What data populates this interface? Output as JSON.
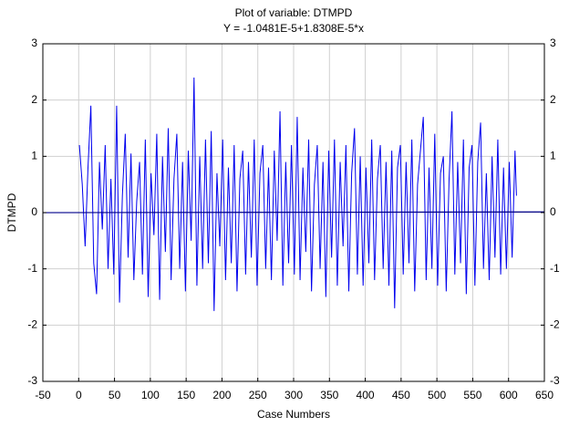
{
  "chart_data": {
    "type": "line",
    "title": "Plot of variable: DTMPD",
    "subtitle": "Y = -1.0481E-5+1.8308E-5*x",
    "x_label": "Case Numbers",
    "y_label": "DTMPD",
    "xlim": [
      -50,
      650
    ],
    "xticks": [
      -50,
      0,
      50,
      100,
      150,
      200,
      250,
      300,
      350,
      400,
      450,
      500,
      550,
      600,
      650
    ],
    "ylim": [
      -3,
      3
    ],
    "yticks": [
      -3,
      -2,
      -1,
      0,
      1,
      2,
      3
    ],
    "grid": true,
    "fit": {
      "intercept": -1.0481e-05,
      "slope": 1.8308e-05,
      "color": "#00008b"
    },
    "series": [
      {
        "name": "DTMPD",
        "color": "#0000ee",
        "x": [
          1,
          5,
          9,
          13,
          17,
          21,
          25,
          29,
          33,
          37,
          41,
          45,
          49,
          53,
          57,
          61,
          65,
          69,
          73,
          77,
          81,
          85,
          89,
          93,
          97,
          101,
          105,
          109,
          113,
          117,
          121,
          125,
          129,
          133,
          137,
          141,
          145,
          149,
          153,
          157,
          161,
          165,
          169,
          173,
          177,
          181,
          185,
          189,
          193,
          197,
          201,
          205,
          209,
          213,
          217,
          221,
          225,
          229,
          233,
          237,
          241,
          245,
          249,
          253,
          257,
          261,
          265,
          269,
          273,
          277,
          281,
          285,
          289,
          293,
          297,
          301,
          305,
          309,
          313,
          317,
          321,
          325,
          329,
          333,
          337,
          341,
          345,
          349,
          353,
          357,
          361,
          365,
          369,
          373,
          377,
          381,
          385,
          389,
          393,
          397,
          401,
          405,
          409,
          413,
          417,
          421,
          425,
          429,
          433,
          437,
          441,
          445,
          449,
          453,
          457,
          461,
          465,
          469,
          473,
          477,
          481,
          485,
          489,
          493,
          497,
          501,
          505,
          509,
          513,
          517,
          521,
          525,
          529,
          533,
          537,
          541,
          545,
          549,
          553,
          557,
          561,
          565,
          569,
          573,
          577,
          581,
          585,
          589,
          593,
          597,
          601,
          605,
          609,
          611
        ],
        "values": [
          1.2,
          0.5,
          -0.6,
          0.8,
          1.9,
          -0.9,
          -1.45,
          0.9,
          -0.3,
          1.2,
          -1.0,
          0.6,
          -1.1,
          1.9,
          -1.6,
          0.3,
          1.4,
          -0.8,
          1.05,
          -1.2,
          0.2,
          0.9,
          -1.1,
          1.3,
          -1.5,
          0.7,
          -0.4,
          1.4,
          -1.55,
          1.0,
          -0.7,
          1.5,
          -1.2,
          0.6,
          1.4,
          -1.0,
          0.9,
          -1.4,
          1.1,
          -0.5,
          2.4,
          -1.3,
          1.0,
          -1.0,
          1.3,
          -0.9,
          1.45,
          -1.75,
          0.7,
          -0.6,
          1.3,
          -1.2,
          0.8,
          -0.9,
          1.2,
          -1.4,
          0.6,
          1.1,
          -1.1,
          0.9,
          -0.8,
          1.3,
          -1.3,
          0.7,
          1.2,
          -1.0,
          0.8,
          -1.2,
          1.1,
          -0.5,
          1.8,
          -1.3,
          0.9,
          -0.9,
          1.2,
          -1.1,
          1.7,
          -1.2,
          0.8,
          -0.7,
          1.3,
          -1.4,
          0.5,
          1.2,
          -1.0,
          0.9,
          -1.5,
          1.1,
          -0.8,
          1.3,
          -1.3,
          0.9,
          -0.6,
          1.2,
          -1.4,
          0.7,
          1.5,
          -1.1,
          1.0,
          -1.3,
          0.8,
          -0.9,
          1.3,
          -1.2,
          0.6,
          1.2,
          -1.0,
          0.9,
          -1.3,
          1.1,
          -1.7,
          0.8,
          1.2,
          -1.1,
          0.9,
          -0.9,
          1.3,
          -1.4,
          0.5,
          1.1,
          1.7,
          -1.2,
          0.8,
          -1.0,
          1.4,
          -1.3,
          0.7,
          1.0,
          -1.4,
          0.6,
          1.8,
          -1.1,
          0.9,
          -0.9,
          1.3,
          -1.45,
          0.8,
          1.2,
          -1.3,
          0.9,
          1.6,
          -1.0,
          0.7,
          -1.2,
          1.0,
          -0.8,
          1.3,
          -1.1,
          0.8,
          -1.0,
          0.9,
          -0.8,
          1.1,
          0.3
        ]
      }
    ]
  }
}
